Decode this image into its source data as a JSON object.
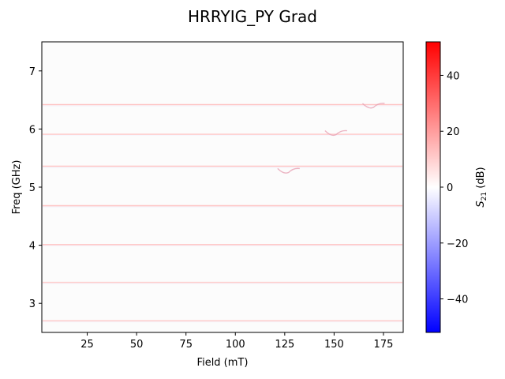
{
  "chart_data": {
    "type": "heatmap",
    "title": "HRRYIG_PY Grad",
    "xlabel": "Field (mT)",
    "ylabel": "Freq (GHz)",
    "xlim": [
      2,
      185
    ],
    "ylim": [
      2.5,
      7.5
    ],
    "x_ticks": [
      25,
      50,
      75,
      100,
      125,
      150,
      175
    ],
    "y_ticks": [
      3,
      4,
      5,
      6,
      7
    ],
    "colorbar": {
      "label": "S21 (dB)",
      "label_main": "S",
      "label_sub": "21",
      "label_suffix": " (dB)",
      "range": [
        -52,
        52
      ],
      "ticks": [
        -40,
        -20,
        0,
        20,
        40
      ],
      "tick_labels": [
        "−40",
        "−20",
        "0",
        "20",
        "40"
      ],
      "colormap": "bwr",
      "low_color": "#0000ff",
      "mid_color": "#ffffff",
      "high_color": "#ff0000"
    },
    "background_value_db": 0,
    "ridge_lines": [
      {
        "freq_ghz": 6.42,
        "peak_db": 6
      },
      {
        "freq_ghz": 5.91,
        "peak_db": 5
      },
      {
        "freq_ghz": 5.36,
        "peak_db": 6
      },
      {
        "freq_ghz": 4.68,
        "peak_db": 6
      },
      {
        "freq_ghz": 4.01,
        "peak_db": 6
      },
      {
        "freq_ghz": 3.36,
        "peak_db": 5
      },
      {
        "freq_ghz": 2.7,
        "peak_db": 5
      }
    ],
    "anomalies": [
      {
        "field_mt": 127,
        "freq_ghz": 5.28
      },
      {
        "field_mt": 151,
        "freq_ghz": 5.93
      },
      {
        "field_mt": 170,
        "freq_ghz": 6.4
      }
    ]
  }
}
